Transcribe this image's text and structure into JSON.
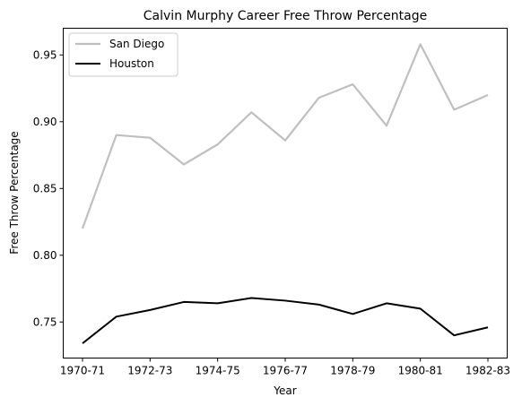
{
  "chart_data": {
    "type": "line",
    "title": "Calvin Murphy Career Free Throw Percentage",
    "xlabel": "Year",
    "ylabel": "Free Throw Percentage",
    "x": [
      "1970-71",
      "1971-72",
      "1972-73",
      "1973-74",
      "1974-75",
      "1975-76",
      "1976-77",
      "1977-78",
      "1978-79",
      "1979-80",
      "1980-81",
      "1981-82",
      "1982-83"
    ],
    "xtick_labels": [
      "1970-71",
      "1972-73",
      "1974-75",
      "1976-77",
      "1978-79",
      "1980-81",
      "1982-83"
    ],
    "yticks": [
      "0.75",
      "0.80",
      "0.85",
      "0.90",
      "0.95"
    ],
    "ylim": [
      0.723,
      0.97
    ],
    "grid": false,
    "legend_position": "top-left",
    "series": [
      {
        "name": "San Diego",
        "color": "#bfbfbf",
        "values": [
          0.82,
          0.89,
          0.888,
          0.868,
          0.883,
          0.907,
          0.886,
          0.918,
          0.928,
          0.897,
          0.958,
          0.909,
          0.92
        ]
      },
      {
        "name": "Houston",
        "color": "#000000",
        "values": [
          0.734,
          0.754,
          0.759,
          0.765,
          0.764,
          0.768,
          0.766,
          0.763,
          0.756,
          0.764,
          0.76,
          0.74,
          0.746
        ]
      }
    ]
  }
}
